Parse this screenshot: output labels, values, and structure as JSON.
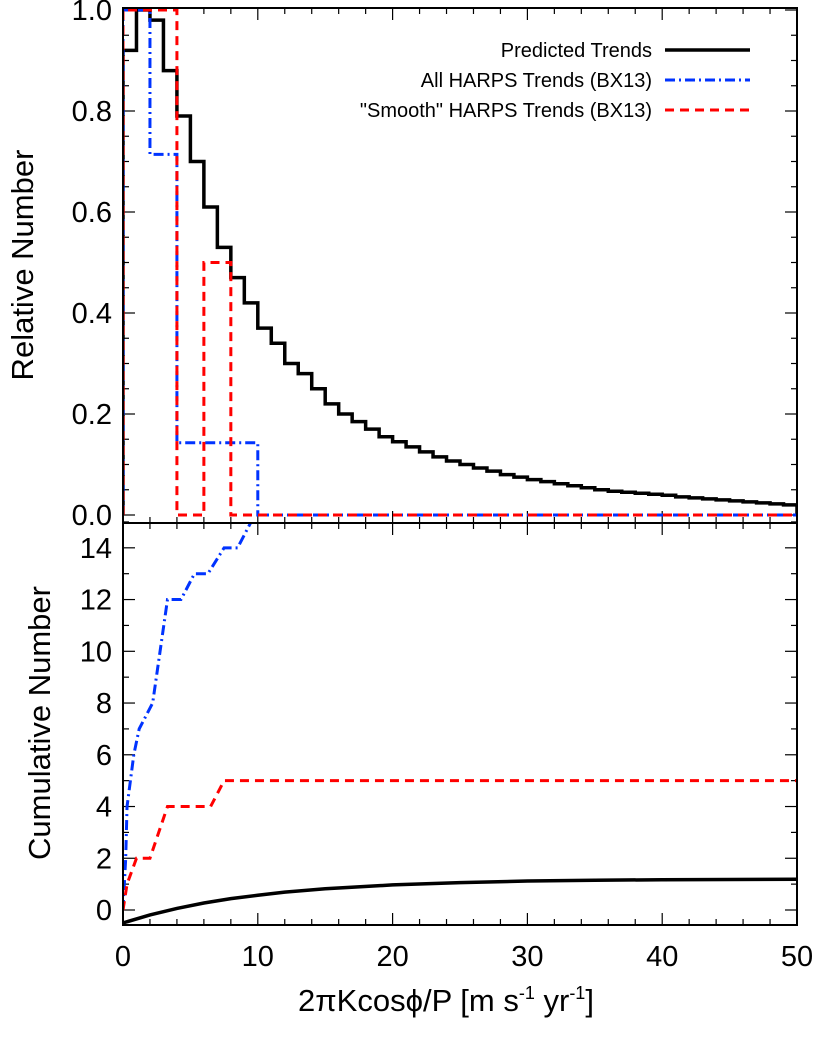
{
  "chart_data": [
    {
      "type": "histogram",
      "ylabel": "Relative Number",
      "xlim": [
        0,
        50
      ],
      "ylim": [
        0,
        1.0
      ],
      "yticks": [
        "0.0",
        "0.2",
        "0.4",
        "0.6",
        "0.8",
        "1.0"
      ],
      "legend_position": "top-right",
      "series": [
        {
          "name": "Predicted Trends",
          "color": "#000000",
          "style": "solid",
          "bin_width": 1,
          "values": [
            0.92,
            1.0,
            0.98,
            0.88,
            0.79,
            0.7,
            0.61,
            0.53,
            0.47,
            0.42,
            0.37,
            0.34,
            0.3,
            0.28,
            0.25,
            0.22,
            0.2,
            0.185,
            0.17,
            0.155,
            0.145,
            0.135,
            0.125,
            0.115,
            0.107,
            0.1,
            0.093,
            0.087,
            0.08,
            0.075,
            0.07,
            0.066,
            0.062,
            0.058,
            0.054,
            0.05,
            0.047,
            0.045,
            0.043,
            0.041,
            0.039,
            0.036,
            0.034,
            0.032,
            0.03,
            0.028,
            0.026,
            0.024,
            0.022,
            0.02
          ]
        },
        {
          "name": "All HARPS Trends (BX13)",
          "color": "#0033ff",
          "style": "dashdot",
          "bin_width": 2,
          "values": [
            1.0,
            0.714,
            0.143,
            0.143,
            0.143,
            0,
            0,
            0,
            0,
            0,
            0,
            0,
            0,
            0,
            0,
            0,
            0,
            0,
            0,
            0,
            0,
            0,
            0,
            0,
            0
          ]
        },
        {
          "name": "\"Smooth\" HARPS Trends (BX13)",
          "color": "#ff0000",
          "style": "dashed",
          "bin_width": 2,
          "values": [
            1.0,
            1.0,
            0,
            0.5,
            0,
            0,
            0,
            0,
            0,
            0,
            0,
            0,
            0,
            0,
            0,
            0,
            0,
            0,
            0,
            0,
            0,
            0,
            0,
            0,
            0
          ]
        }
      ]
    },
    {
      "type": "line",
      "ylabel": "Cumulative Number",
      "xlabel": {
        "main": "2πKcosϕ/P [m s",
        "sup1": "-1",
        "mid": " yr",
        "sup2": "-1",
        "end": "]"
      },
      "xlim": [
        0,
        50
      ],
      "ylim": [
        -0.6,
        15
      ],
      "xticks": [
        "0",
        "10",
        "20",
        "30",
        "40",
        "50"
      ],
      "yticks": [
        "0",
        "2",
        "4",
        "6",
        "8",
        "10",
        "12",
        "14"
      ],
      "series": [
        {
          "name": "Predicted Trends",
          "color": "#000000",
          "style": "solid",
          "x": [
            0,
            2,
            4,
            6,
            8,
            10,
            12,
            15,
            20,
            25,
            30,
            35,
            40,
            50
          ],
          "y": [
            -0.5,
            -0.19,
            0.06,
            0.27,
            0.44,
            0.57,
            0.69,
            0.82,
            0.97,
            1.06,
            1.12,
            1.15,
            1.17,
            1.19
          ]
        },
        {
          "name": "All HARPS Trends (BX13)",
          "color": "#0033ff",
          "style": "dashdot",
          "x": [
            0,
            0.2,
            0.3,
            0.8,
            1.2,
            2.2,
            3.3,
            4.3,
            5.3,
            6.3,
            7.5,
            8.5,
            9.5,
            50
          ],
          "y": [
            0,
            2,
            4,
            6,
            7,
            8,
            12,
            12,
            13,
            13,
            14,
            14,
            15,
            15
          ]
        },
        {
          "name": "\"Smooth\" HARPS Trends (BX13)",
          "color": "#ff0000",
          "style": "dashed",
          "x": [
            0,
            0.3,
            1.0,
            2.0,
            3.3,
            6.5,
            7.5,
            50
          ],
          "y": [
            0,
            1,
            2,
            2,
            4,
            4,
            5,
            5
          ]
        }
      ]
    }
  ]
}
